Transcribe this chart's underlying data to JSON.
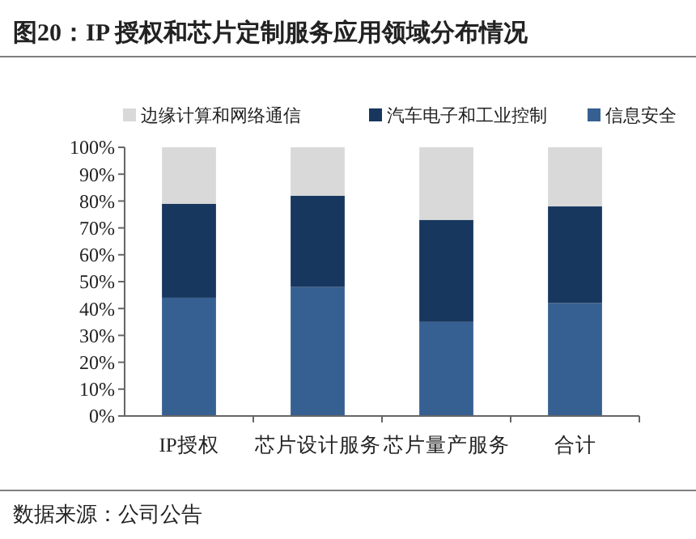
{
  "chart_data": {
    "type": "bar",
    "stacked": true,
    "title": "图20：IP 授权和芯片定制服务应用领域分布情况",
    "annotations": [
      "数据来源：公司公告"
    ],
    "categories": [
      "IP授权",
      "芯片设计服务",
      "芯片量产服务",
      "合计"
    ],
    "series": [
      {
        "name": "信息安全",
        "color": "#376092",
        "values": [
          44,
          48,
          35,
          42
        ]
      },
      {
        "name": "汽车电子和工业控制",
        "color": "#17375e",
        "values": [
          35,
          34,
          38,
          36
        ]
      },
      {
        "name": "边缘计算和网络通信",
        "color": "#d9d9d9",
        "values": [
          21,
          18,
          27,
          22
        ]
      }
    ],
    "ylim": [
      0,
      100
    ],
    "yticks": [
      {
        "value": 0,
        "label": "0%"
      },
      {
        "value": 10,
        "label": "10%"
      },
      {
        "value": 20,
        "label": "20%"
      },
      {
        "value": 30,
        "label": "30%"
      },
      {
        "value": 40,
        "label": "40%"
      },
      {
        "value": 50,
        "label": "50%"
      },
      {
        "value": 60,
        "label": "60%"
      },
      {
        "value": 70,
        "label": "70%"
      },
      {
        "value": 80,
        "label": "80%"
      },
      {
        "value": 90,
        "label": "90%"
      },
      {
        "value": 100,
        "label": "100%"
      }
    ],
    "legend": "top",
    "grid": false
  }
}
